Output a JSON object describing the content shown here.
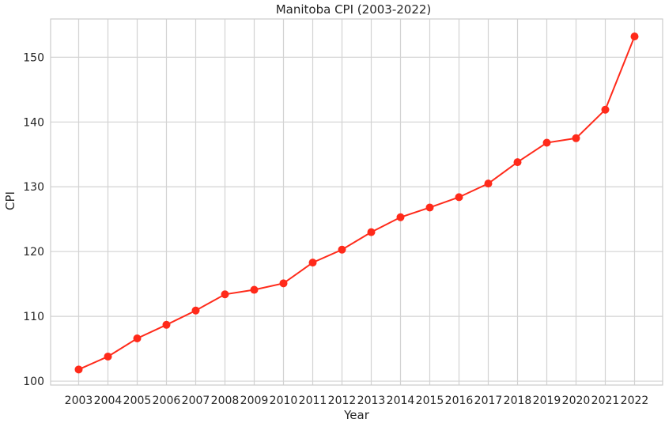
{
  "chart_data": {
    "type": "line",
    "title": "Manitoba CPI (2003-2022)",
    "xlabel": "Year",
    "ylabel": "CPI",
    "x": [
      "2003",
      "2004",
      "2005",
      "2006",
      "2007",
      "2008",
      "2009",
      "2010",
      "2011",
      "2012",
      "2013",
      "2014",
      "2015",
      "2016",
      "2017",
      "2018",
      "2019",
      "2020",
      "2021",
      "2022"
    ],
    "series": [
      {
        "values": [
          101.8,
          103.8,
          106.6,
          108.7,
          110.9,
          113.4,
          114.1,
          115.1,
          118.3,
          120.3,
          123.0,
          125.3,
          126.8,
          128.4,
          130.5,
          133.8,
          136.8,
          137.5,
          141.9,
          153.2
        ]
      }
    ],
    "yticks": [
      100,
      110,
      120,
      130,
      140,
      150
    ],
    "ylim": [
      99.4,
      155.9
    ],
    "grid": true,
    "color": "#ff2a1a"
  }
}
